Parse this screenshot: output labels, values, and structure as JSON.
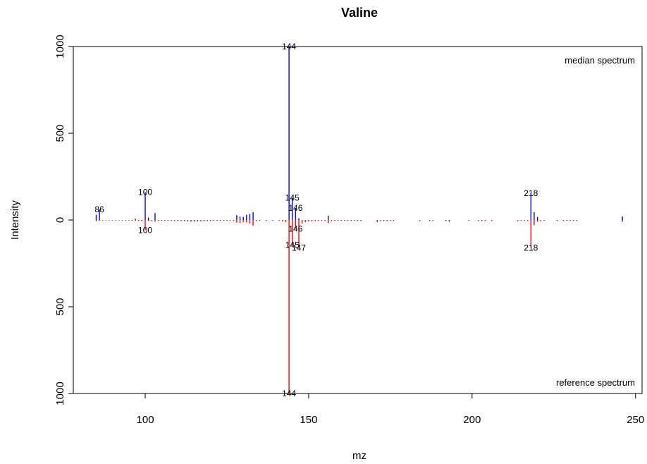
{
  "chart_data": {
    "type": "bar",
    "title": "Valine",
    "xlabel": "mz",
    "ylabel": "Intensity",
    "xlim": [
      78,
      252
    ],
    "ylim": [
      -1000,
      1000
    ],
    "x_ticks": [
      100,
      150,
      200,
      250
    ],
    "y_ticks": [
      {
        "value": 1000,
        "label": "1000"
      },
      {
        "value": 500,
        "label": "500"
      },
      {
        "value": 0,
        "label": "0"
      },
      {
        "value": -500,
        "label": "500"
      },
      {
        "value": -1000,
        "label": "1000"
      }
    ],
    "grid": false,
    "annotations": {
      "top_right": "median spectrum",
      "bottom_right": "reference spectrum"
    },
    "colors": {
      "median": "#0000FF",
      "reference": "#FF0000",
      "axis": "#000000"
    },
    "series": [
      {
        "name": "median spectrum",
        "color": "#0000FF",
        "x": [
          85,
          86,
          97,
          100,
          101,
          103,
          128,
          129,
          130,
          131,
          132,
          133,
          144,
          145,
          146,
          147,
          156,
          218,
          219,
          220,
          246
        ],
        "values": [
          30,
          60,
          6,
          160,
          14,
          40,
          28,
          20,
          18,
          30,
          35,
          45,
          1000,
          128,
          70,
          10,
          25,
          155,
          45,
          18,
          20
        ]
      },
      {
        "name": "reference spectrum",
        "color": "#FF0000",
        "x": [
          85,
          86,
          87,
          88,
          89,
          90,
          91,
          92,
          93,
          94,
          95,
          96,
          97,
          98,
          99,
          100,
          101,
          102,
          103,
          104,
          105,
          106,
          107,
          108,
          109,
          110,
          111,
          112,
          113,
          114,
          115,
          116,
          117,
          118,
          119,
          120,
          121,
          122,
          123,
          124,
          125,
          126,
          127,
          128,
          129,
          130,
          131,
          132,
          133,
          134,
          135,
          137,
          139,
          141,
          142,
          143,
          144,
          145,
          146,
          147,
          148,
          149,
          150,
          151,
          152,
          153,
          154,
          155,
          156,
          157,
          158,
          159,
          160,
          161,
          162,
          163,
          164,
          165,
          166,
          171,
          172,
          173,
          174,
          175,
          176,
          184,
          187,
          188,
          192,
          193,
          199,
          202,
          203,
          204,
          206,
          214,
          215,
          216,
          217,
          218,
          219,
          220,
          221,
          222,
          226,
          228,
          229,
          230,
          231,
          232,
          246
        ],
        "values": [
          -6,
          -4,
          -3,
          -3,
          -3,
          -3,
          -3,
          -3,
          -3,
          -3,
          -4,
          -4,
          -5,
          -5,
          -8,
          -58,
          -6,
          -6,
          -10,
          -5,
          -4,
          -4,
          -4,
          -5,
          -5,
          -6,
          -6,
          -6,
          -8,
          -10,
          -10,
          -8,
          -7,
          -7,
          -6,
          -6,
          -5,
          -5,
          -4,
          -4,
          -4,
          -4,
          -4,
          -15,
          -18,
          -12,
          -14,
          -20,
          -32,
          -6,
          -5,
          -4,
          -4,
          -4,
          -8,
          -12,
          -1000,
          -145,
          -50,
          -160,
          -20,
          -12,
          -8,
          -8,
          -6,
          -6,
          -5,
          -5,
          -18,
          -6,
          -5,
          -5,
          -5,
          -5,
          -5,
          -5,
          -5,
          -5,
          -5,
          -12,
          -6,
          -6,
          -6,
          -5,
          -5,
          -5,
          -5,
          -5,
          -6,
          -10,
          -5,
          -6,
          -6,
          -5,
          -5,
          -5,
          -5,
          -5,
          -5,
          -160,
          -30,
          -10,
          -6,
          -5,
          -6,
          -5,
          -5,
          -5,
          -5,
          -5,
          -10
        ]
      }
    ],
    "peak_labels": {
      "median": [
        {
          "x": 86,
          "y": 60,
          "label": "86"
        },
        {
          "x": 100,
          "y": 160,
          "label": "100"
        },
        {
          "x": 144,
          "y": 1000,
          "label": "144"
        },
        {
          "x": 145,
          "y": 128,
          "label": "145"
        },
        {
          "x": 146,
          "y": 70,
          "label": "146"
        },
        {
          "x": 218,
          "y": 155,
          "label": "218"
        }
      ],
      "reference": [
        {
          "x": 100,
          "y": -58,
          "label": "100"
        },
        {
          "x": 146,
          "y": -50,
          "label": "146"
        },
        {
          "x": 145,
          "y": -145,
          "label": "145"
        },
        {
          "x": 147,
          "y": -160,
          "label": "147"
        },
        {
          "x": 218,
          "y": -160,
          "label": "218"
        },
        {
          "x": 144,
          "y": -1000,
          "label": "144"
        }
      ]
    }
  }
}
